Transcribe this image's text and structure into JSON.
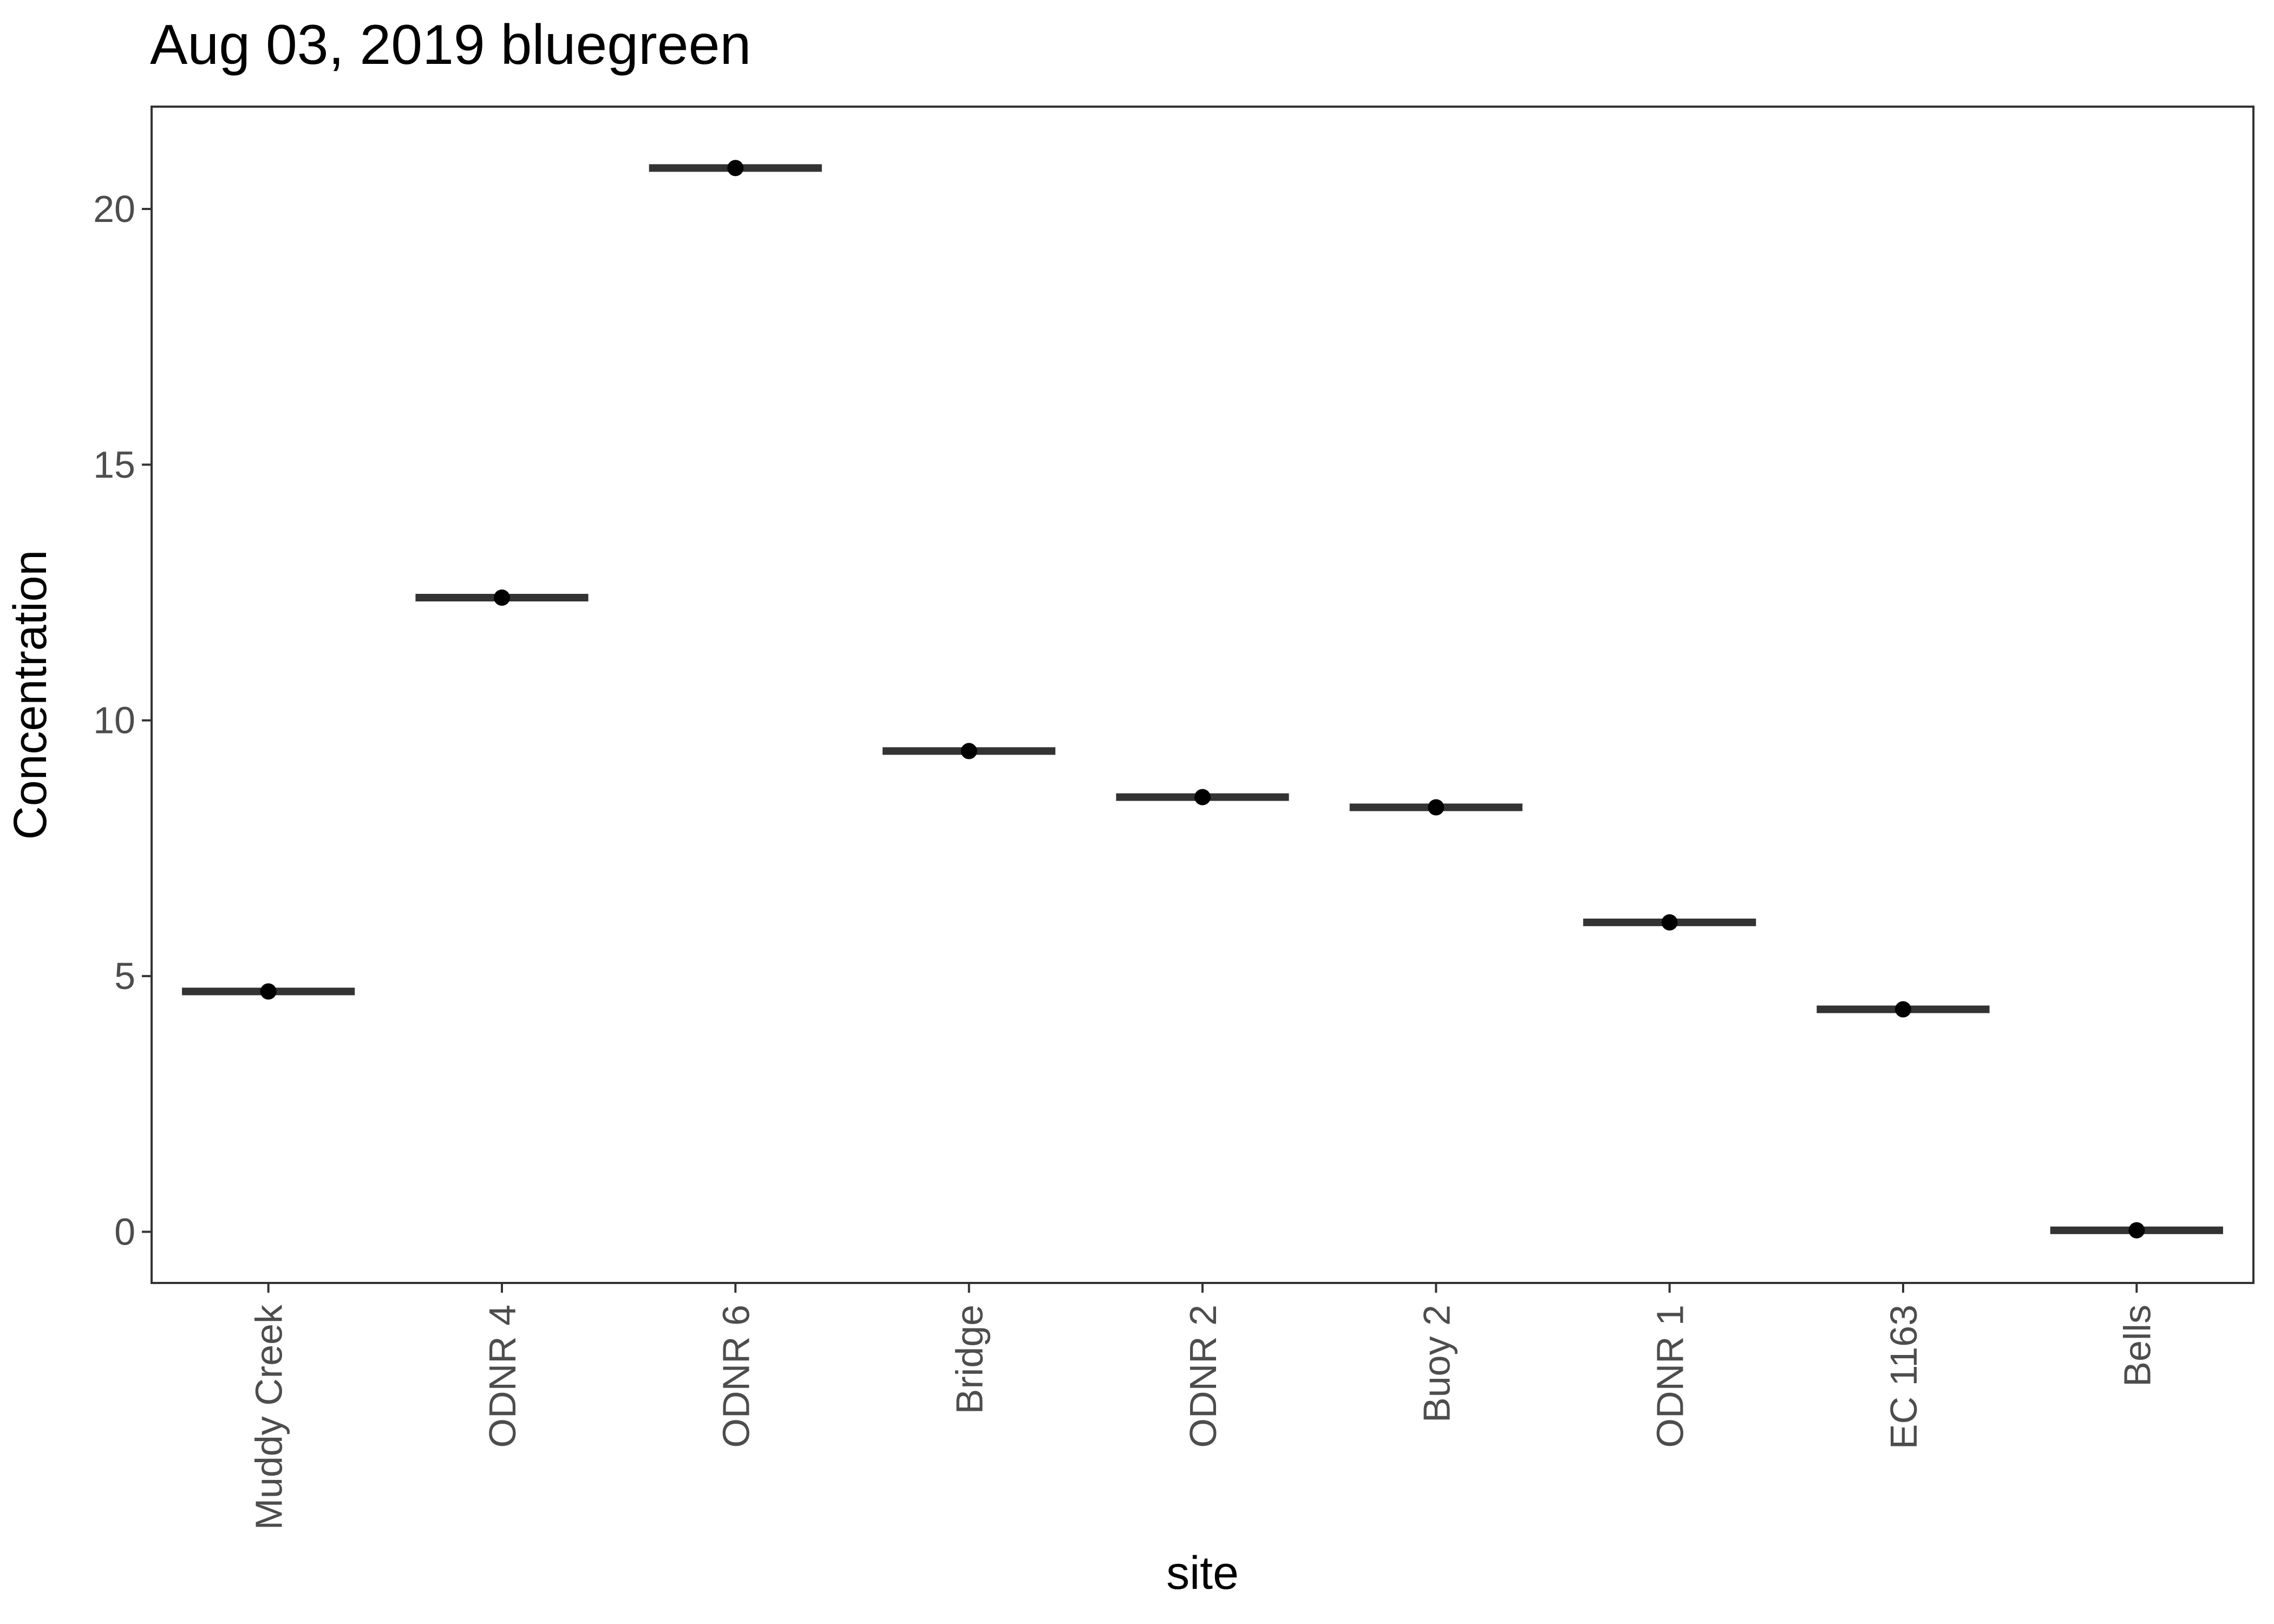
{
  "chart_data": {
    "type": "scatter",
    "title": "Aug 03, 2019 bluegreen",
    "xlabel": "site",
    "ylabel": "Concentration",
    "categories": [
      "Muddy Creek",
      "ODNR 4",
      "ODNR 6",
      "Bridge",
      "ODNR 2",
      "Buoy 2",
      "ODNR 1",
      "EC 1163",
      "Bells"
    ],
    "values": [
      4.7,
      12.4,
      20.8,
      9.4,
      8.5,
      8.3,
      6.05,
      4.35,
      0.03
    ],
    "y_ticks": [
      0,
      5,
      10,
      15,
      20
    ],
    "ylim": [
      -1,
      22
    ],
    "grid": false,
    "marks": "point with horizontal median bar"
  },
  "colors": {
    "bar": "#333333",
    "point": "#000000",
    "tick_label": "#4d4d4d",
    "border": "#333333"
  }
}
